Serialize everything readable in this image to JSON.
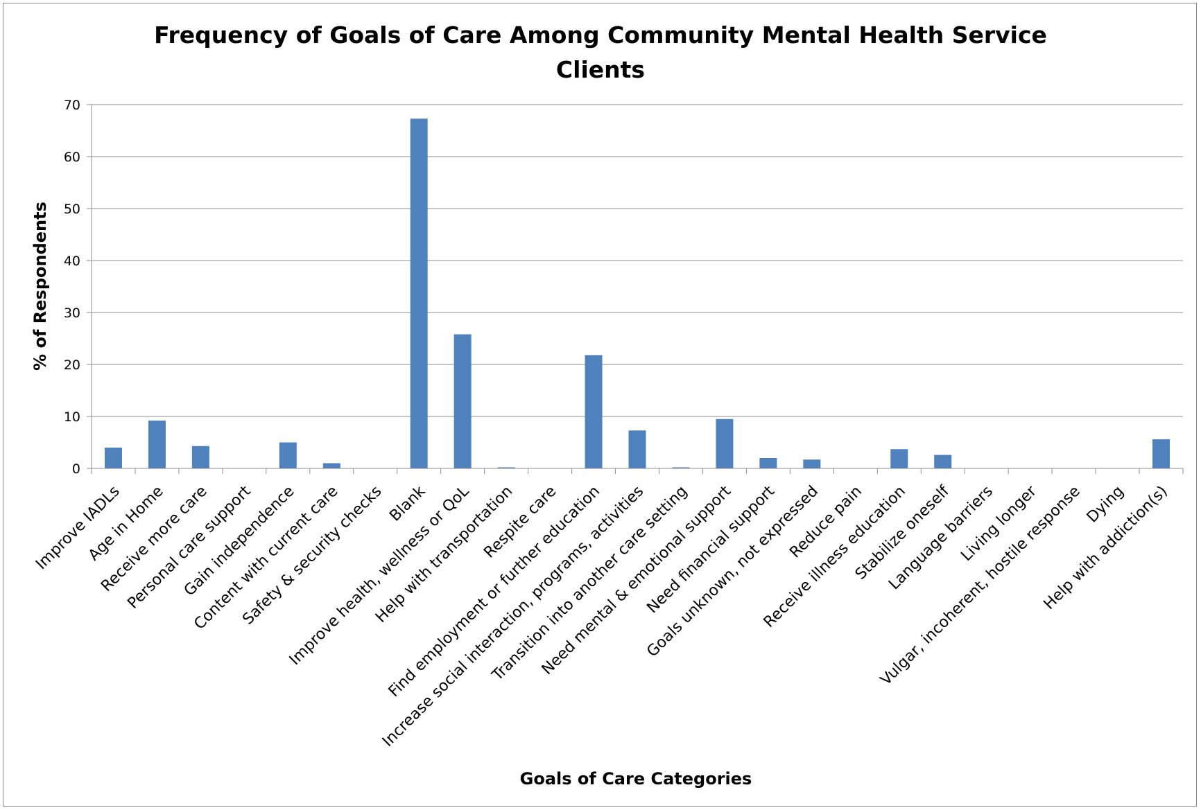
{
  "chart_data": {
    "type": "bar",
    "title": "Frequency of Goals of Care Among Community Mental Health Service Clients",
    "title_lines": [
      "Frequency of Goals of Care Among Community Mental Health Service",
      "Clients"
    ],
    "xlabel": "Goals of Care Categories",
    "ylabel": "% of Respondents",
    "ylim": [
      0,
      70
    ],
    "yticks": [
      0,
      10,
      20,
      30,
      40,
      50,
      60,
      70
    ],
    "grid": true,
    "legend": "none",
    "bar_color": "#4F81BD",
    "categories": [
      "Improve IADLs",
      "Age in Home",
      "Receive more care",
      "Personal care support",
      "Gain independence",
      "Content with current care",
      "Safety & security checks",
      "Blank",
      "Improve health, wellness or QoL",
      "Help with transportation",
      "Respite care",
      "Find employment or further education",
      "Increase social interaction, programs, activities",
      "Transition into another care setting",
      "Need mental & emotional support",
      "Need financial support",
      "Goals unknown, not expressed",
      "Reduce pain",
      "Receive illness education",
      "Stabilize oneself",
      "Language barriers",
      "Living longer",
      "Vulgar, incoherent, hostile response",
      "Dying",
      "Help with addiction(s)"
    ],
    "values": [
      4.0,
      9.2,
      4.3,
      0,
      5.0,
      1.0,
      0,
      67.3,
      25.8,
      0.2,
      0,
      21.8,
      7.3,
      0.2,
      9.5,
      2.0,
      1.7,
      0,
      3.7,
      2.6,
      0,
      0,
      0,
      0,
      5.6
    ]
  }
}
